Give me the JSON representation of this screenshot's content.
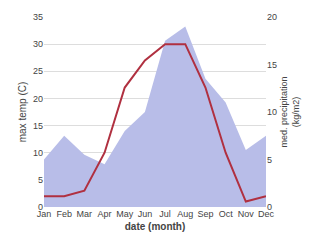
{
  "chart_data": {
    "type": "line",
    "xlabel": "date (month)",
    "ylabel": "max temp (C)",
    "y2label": "med. precipitation\n(kg/m2)",
    "categories": [
      "Jan",
      "Feb",
      "Mar",
      "Apr",
      "May",
      "Jun",
      "Jul",
      "Aug",
      "Sep",
      "Oct",
      "Nov",
      "Dec"
    ],
    "series": [
      {
        "type": "area",
        "axis": "y2",
        "color": "#b8bde8",
        "values": [
          5,
          7.5,
          5.5,
          4.5,
          8,
          10,
          17.5,
          19,
          13.5,
          11,
          6,
          7.5
        ]
      },
      {
        "type": "line",
        "color": "#b03040",
        "values": [
          2,
          2,
          3,
          10,
          22,
          27,
          30,
          30,
          22,
          10,
          1,
          2
        ]
      }
    ],
    "ylim": [
      0,
      35
    ],
    "yticks": [
      0,
      5,
      10,
      15,
      20,
      25,
      30,
      35
    ],
    "y2lim": [
      0,
      20
    ],
    "y2ticks": [
      0,
      5,
      10,
      15,
      20
    ],
    "grid": true
  }
}
